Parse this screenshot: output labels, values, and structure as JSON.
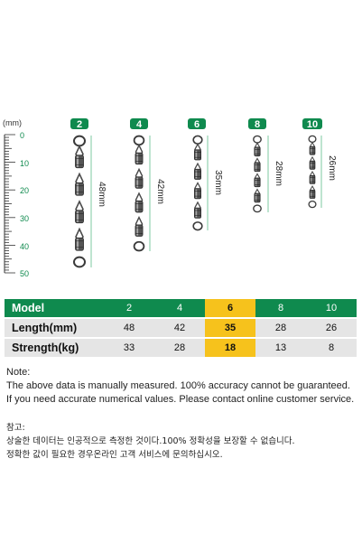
{
  "figure": {
    "unit_label": "(mm)",
    "ruler_ticks": [
      "0",
      "10",
      "20",
      "30",
      "40",
      "50"
    ],
    "sizes": [
      {
        "model": "2",
        "length_label": "48mm"
      },
      {
        "model": "4",
        "length_label": "42mm"
      },
      {
        "model": "6",
        "length_label": "35mm"
      },
      {
        "model": "8",
        "length_label": "28mm"
      },
      {
        "model": "10",
        "length_label": "26mm"
      }
    ],
    "colors": {
      "green": "#0f8a4e",
      "highlight": "#f6c21c",
      "gray": "#e5e5e5",
      "line": "#a8dbc0"
    }
  },
  "table": {
    "model_label": "Model",
    "length_label": "Length(mm)",
    "strength_label": "Strength(kg)",
    "models": [
      "2",
      "4",
      "6",
      "8",
      "10"
    ],
    "lengths": [
      "48",
      "42",
      "35",
      "28",
      "26"
    ],
    "strengths": [
      "33",
      "28",
      "18",
      "13",
      "8"
    ],
    "highlight_model": "6"
  },
  "notes": {
    "en_title": "Note:",
    "en_line1": "The above data is manually measured. 100% accuracy cannot be guaranteed.",
    "en_line2": "If you need accurate numerical values. Please contact online customer service.",
    "kr_title": "참고:",
    "kr_line1": "상술한 데이터는 인공적으로 측정한 것이다.100% 정확성을 보장할 수 없습니다.",
    "kr_line2": "정확한 값이 필요한 경우온라인 고객 서비스에 문의하십시오."
  }
}
